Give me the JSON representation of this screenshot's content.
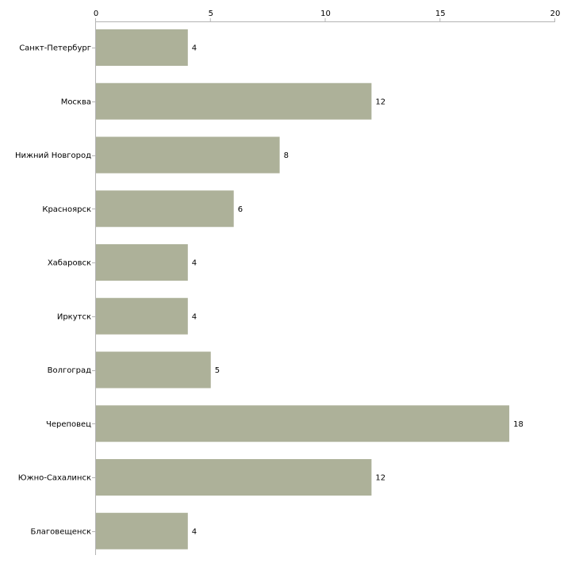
{
  "chart_data": {
    "type": "bar",
    "orientation": "horizontal",
    "title": "",
    "xlabel": "",
    "ylabel": "",
    "xlim": [
      0,
      20
    ],
    "x_ticks": [
      0,
      5,
      10,
      15,
      20
    ],
    "x_tick_labels": [
      "0",
      "5",
      "10",
      "15",
      "20"
    ],
    "axis_position": "top",
    "grid": false,
    "legend": "none",
    "categories": [
      "Санкт-Петербург",
      "Москва",
      "Нижний Новгород",
      "Красноярск",
      "Хабаровск",
      "Иркутск",
      "Волгоград",
      "Череповец",
      "Южно-Сахалинск",
      "Благовещенск"
    ],
    "values": [
      4,
      12,
      8,
      6,
      4,
      4,
      5,
      18,
      12,
      4
    ],
    "data_labels": [
      "4",
      "12",
      "8",
      "6",
      "4",
      "4",
      "5",
      "18",
      "12",
      "4"
    ],
    "colors": {
      "bar": "#adb199",
      "axis": "#b4b4b4",
      "text": "#000000"
    }
  }
}
